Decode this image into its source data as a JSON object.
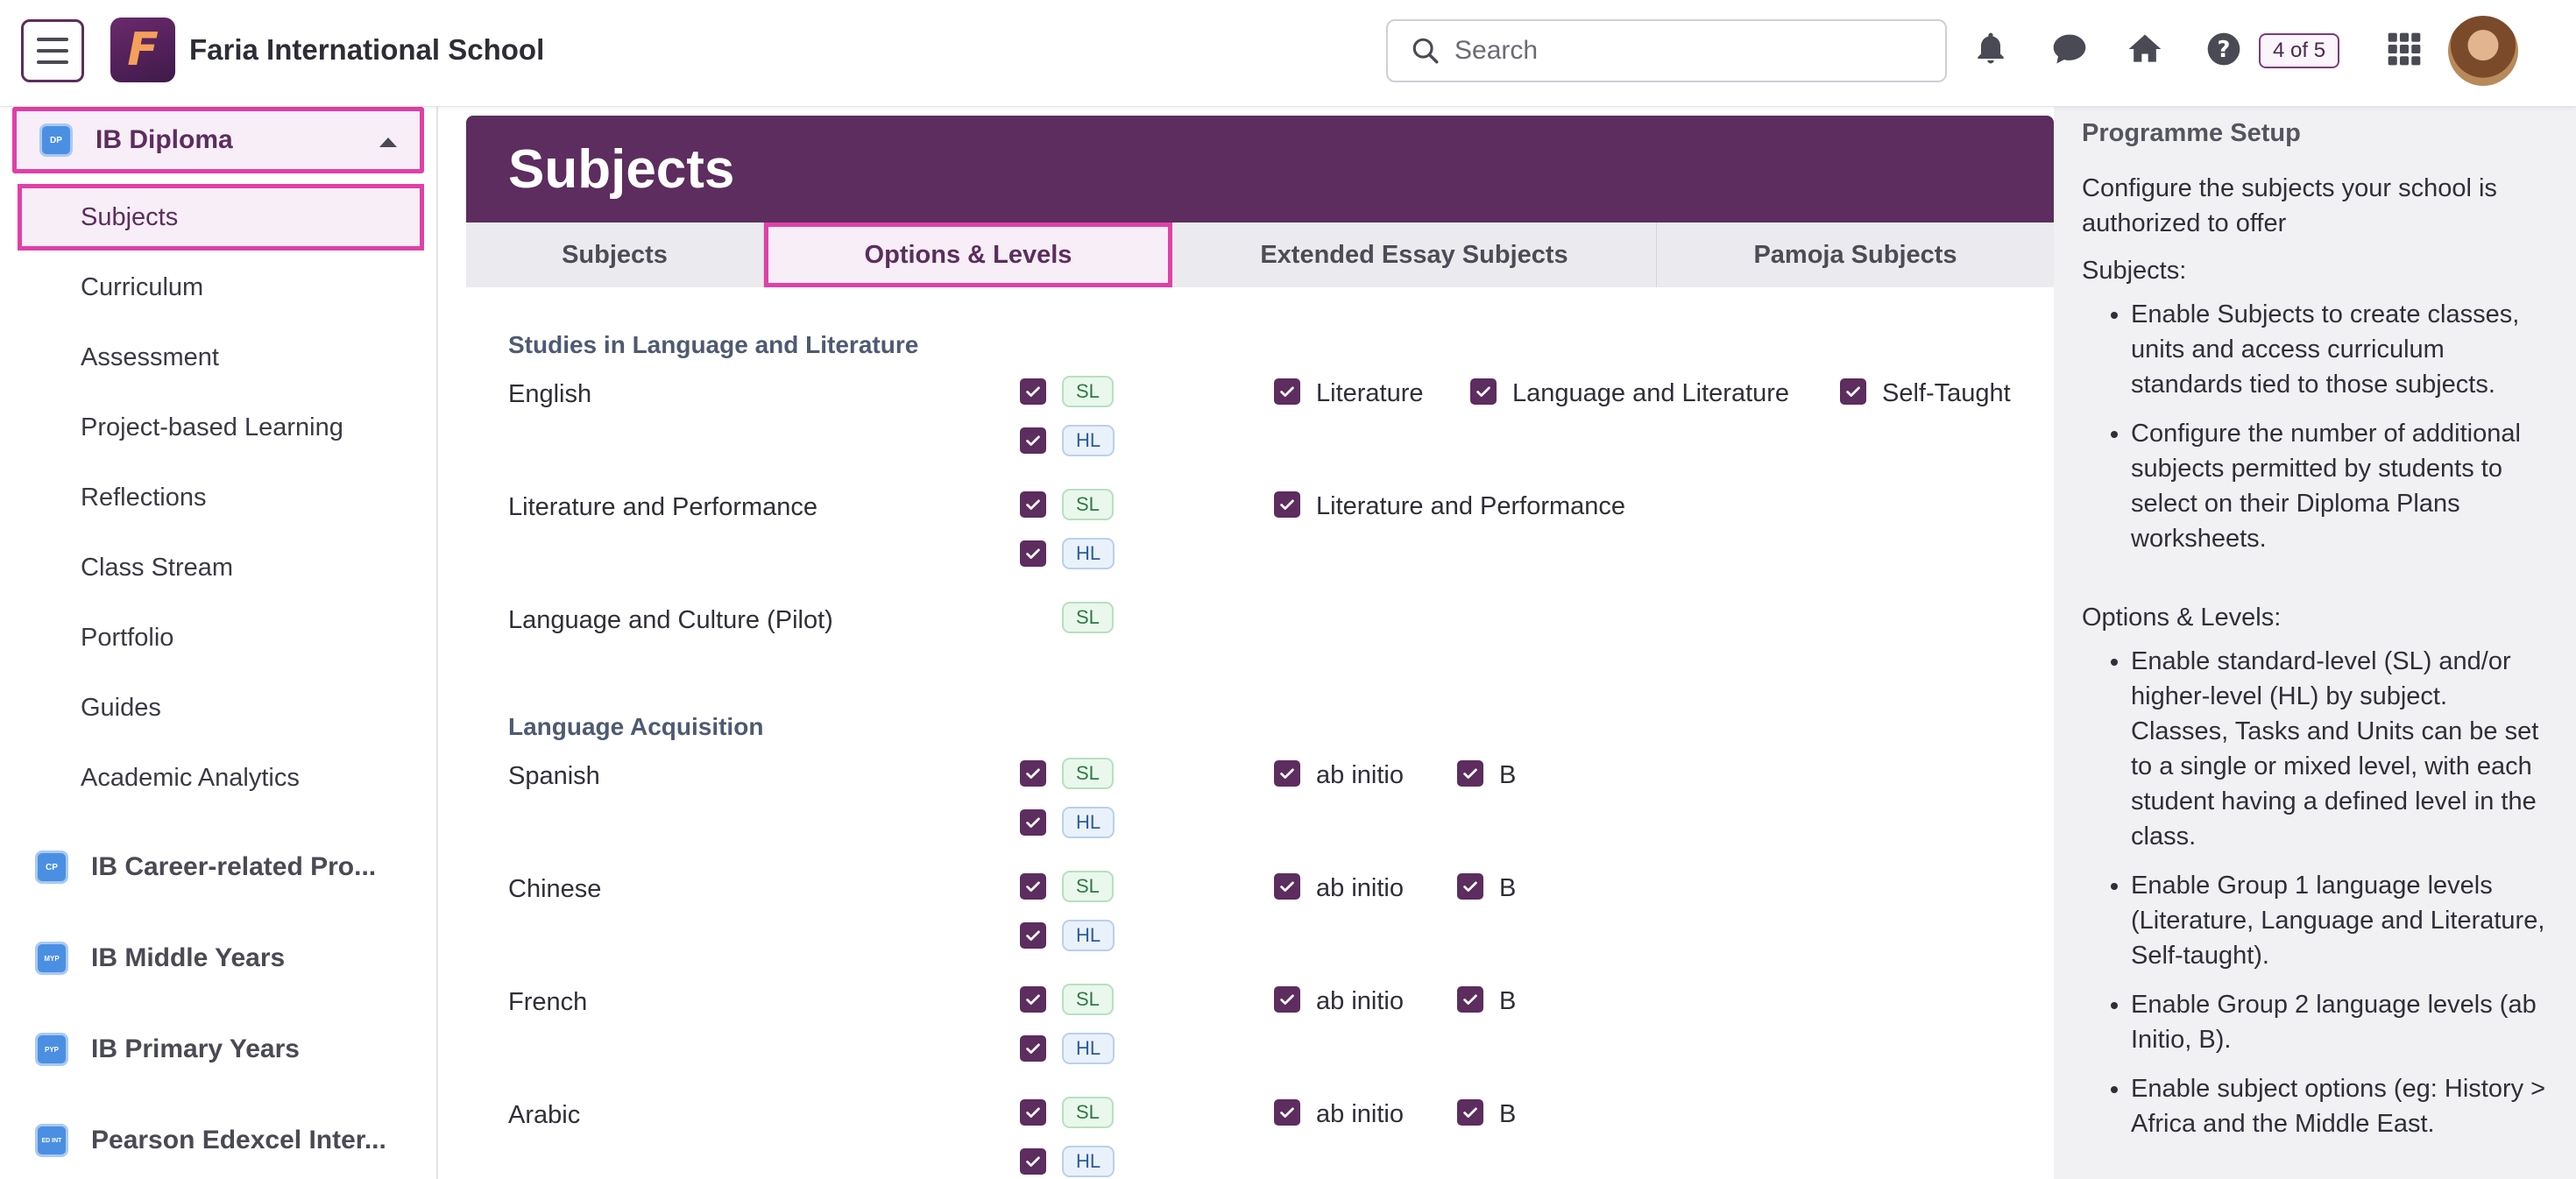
{
  "app": {
    "school_name": "Faria International School",
    "logo_letter": "F",
    "search_placeholder": "Search",
    "page_counter": "4 of 5",
    "accent_color": "#5c2d5e",
    "highlight_color": "#e040a8"
  },
  "topbar_icons": [
    "menu-icon",
    "bell-icon",
    "chat-icon",
    "home-icon",
    "help-icon",
    "apps-grid-icon",
    "avatar"
  ],
  "sidebar": {
    "programmes": [
      {
        "label": "IB Diploma",
        "badge": "DP",
        "expanded": true
      },
      {
        "label": "IB Career-related Pro...",
        "badge": "CP"
      },
      {
        "label": "IB Middle Years",
        "badge": "MYP"
      },
      {
        "label": "IB Primary Years",
        "badge": "PYP"
      },
      {
        "label": "Pearson Edexcel Inter...",
        "badge": "ED INT"
      }
    ],
    "items": [
      {
        "label": "Subjects",
        "active": true
      },
      {
        "label": "Curriculum"
      },
      {
        "label": "Assessment"
      },
      {
        "label": "Project-based Learning"
      },
      {
        "label": "Reflections"
      },
      {
        "label": "Class Stream"
      },
      {
        "label": "Portfolio"
      },
      {
        "label": "Guides"
      },
      {
        "label": "Academic Analytics"
      }
    ]
  },
  "main": {
    "title": "Subjects",
    "tabs": [
      {
        "label": "Subjects"
      },
      {
        "label": "Options & Levels",
        "active": true
      },
      {
        "label": "Extended Essay Subjects"
      },
      {
        "label": "Pamoja Subjects"
      }
    ],
    "groups": [
      {
        "title": "Studies in Language and Literature",
        "subjects": [
          {
            "name": "English",
            "levels": [
              "SL",
              "HL"
            ],
            "options": [
              "Literature",
              "Language and Literature",
              "Self-Taught"
            ]
          },
          {
            "name": "Literature and Performance",
            "levels": [
              "SL",
              "HL"
            ],
            "options": [
              "Literature and Performance"
            ]
          },
          {
            "name": "Language and Culture (Pilot)",
            "levels": [
              "SL"
            ],
            "options": []
          }
        ]
      },
      {
        "title": "Language Acquisition",
        "subjects": [
          {
            "name": "Spanish",
            "levels": [
              "SL",
              "HL"
            ],
            "options": [
              "ab initio",
              "B"
            ]
          },
          {
            "name": "Chinese",
            "levels": [
              "SL",
              "HL"
            ],
            "options": [
              "ab initio",
              "B"
            ]
          },
          {
            "name": "French",
            "levels": [
              "SL",
              "HL"
            ],
            "options": [
              "ab initio",
              "B"
            ]
          },
          {
            "name": "Arabic",
            "levels": [
              "SL",
              "HL"
            ],
            "options": [
              "ab initio",
              "B"
            ]
          }
        ]
      }
    ]
  },
  "help": {
    "heading": "Programme Setup",
    "intro": "Configure the subjects your school is authorized to offer",
    "subjects_label": "Subjects:",
    "subjects_bullets": [
      "Enable Subjects to create classes, units and access curriculum standards tied to those subjects.",
      "Configure the number of additional subjects permitted by students to select on their Diploma Plans worksheets."
    ],
    "options_label": "Options & Levels:",
    "options_bullets": [
      "Enable standard-level (SL) and/or higher-level (HL) by subject. Classes, Tasks and Units can be set to a single or mixed level, with each student having a defined level in the class.",
      "Enable Group 1 language levels (Literature, Language and Literature, Self-taught).",
      "Enable Group 2 language levels (ab Initio, B).",
      "Enable subject options (eg: History > Africa and the Middle East."
    ]
  }
}
